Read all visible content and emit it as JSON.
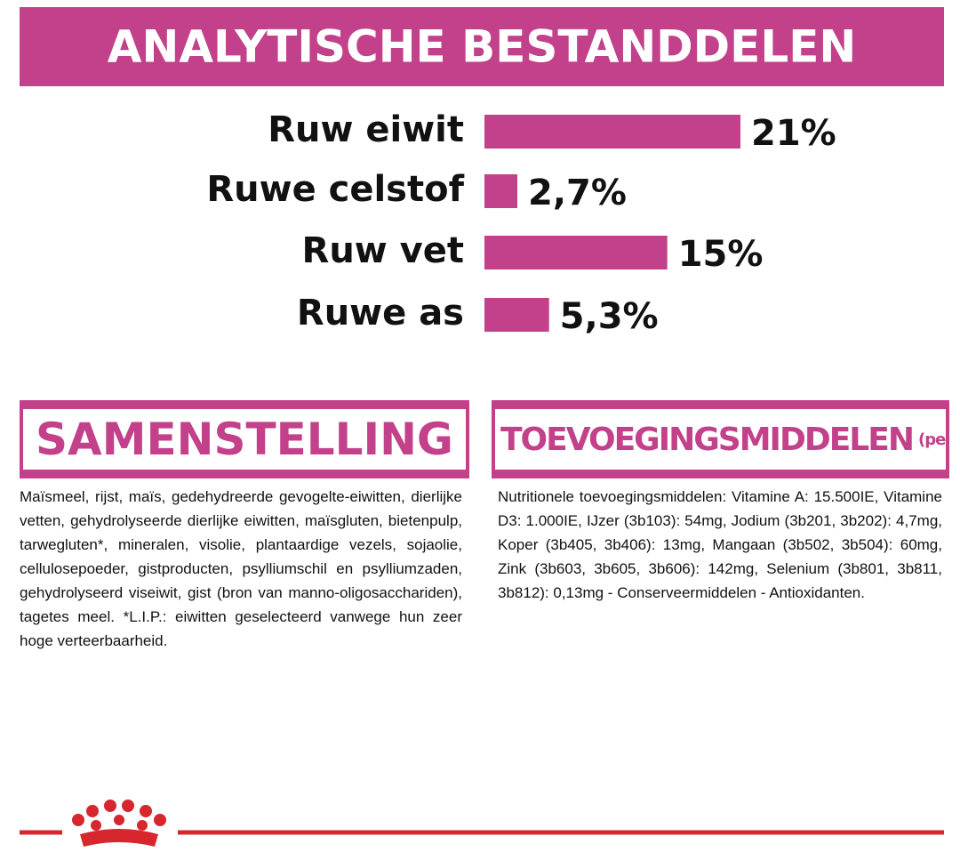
{
  "chart_data": {
    "type": "bar",
    "title": "ANALYTISCHE BESTANDDELEN",
    "categories": [
      "Ruw eiwit",
      "Ruwe celstof",
      "Ruw vet",
      "Ruwe as"
    ],
    "values": [
      21,
      2.7,
      15,
      5.3
    ],
    "value_labels": [
      "21%",
      "2,7%",
      "15%",
      "5,3%"
    ],
    "color": "#c2418a"
  },
  "composition": {
    "title": "SAMENSTELLING",
    "text": "Maïsmeel, rijst, maïs, gedehydreerde gevogelte-eiwitten, dierlijke vetten, gehydrolyseerde dierlijke eiwitten, maïsgluten, bietenpulp, tarwegluten*, mineralen, visolie, plantaardige vezels, sojaolie, cellulosepoeder, gistproducten, psylliumschil en psylliumzaden, gehydrolyseerd viseiwit, gist (bron van manno-oligosacchariden), tagetes meel. *L.I.P.: eiwitten geselecteerd vanwege hun zeer hoge verteerbaarheid."
  },
  "additives": {
    "title": "TOEVOEGINGSMIDDELEN",
    "title_suffix": "(per kg)",
    "text": "Nutritionele toevoegingsmiddelen: Vitamine A: 15.500IE, Vitamine D3: 1.000IE, IJzer (3b103): 54mg, Jodium (3b201, 3b202): 4,7mg, Koper (3b405, 3b406): 13mg, Mangaan (3b502, 3b504): 60mg, Zink (3b603, 3b605, 3b606): 142mg, Selenium (3b801, 3b811, 3b812): 0,13mg - Conserveermiddelen - Antioxidanten."
  }
}
